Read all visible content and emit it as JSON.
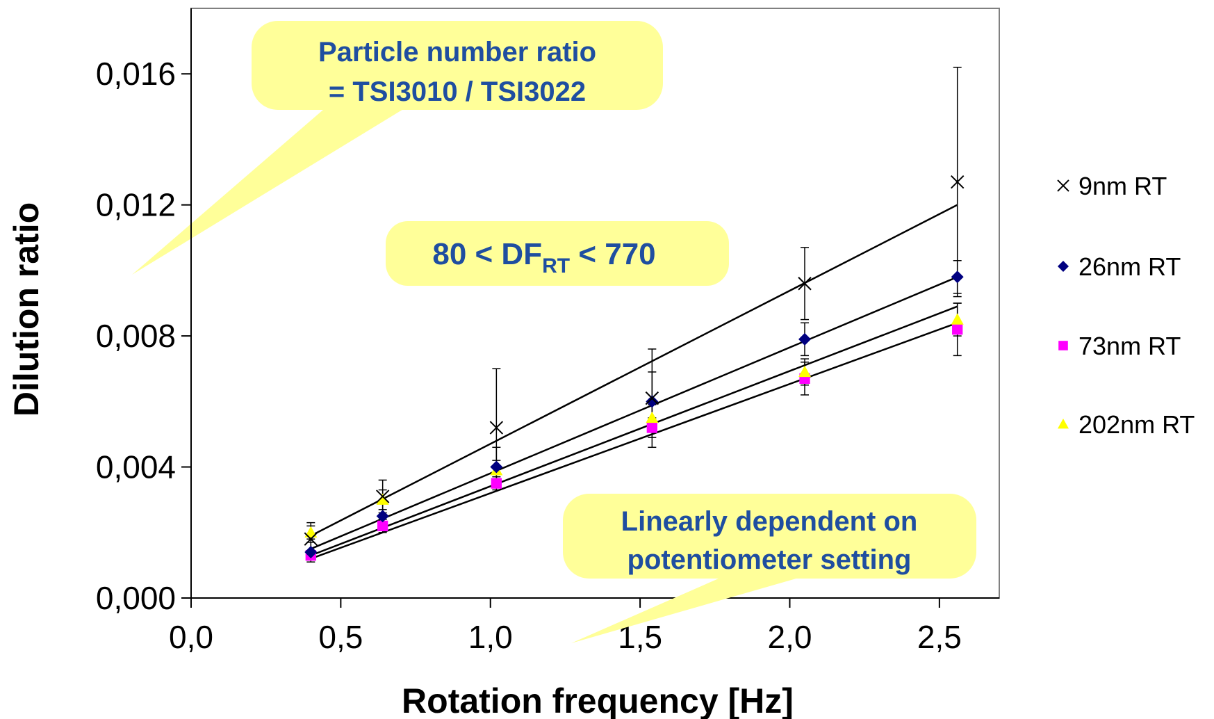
{
  "chart_data": {
    "type": "scatter",
    "xlabel": "Rotation frequency [Hz]",
    "ylabel": "Dilution ratio",
    "xlim": [
      0.0,
      2.7
    ],
    "ylim": [
      0.0,
      0.018
    ],
    "x_ticks": [
      "0,0",
      "0,5",
      "1,0",
      "1,5",
      "2,0",
      "2,5"
    ],
    "x_tick_values": [
      0.0,
      0.5,
      1.0,
      1.5,
      2.0,
      2.5
    ],
    "y_ticks": [
      "0,000",
      "0,004",
      "0,008",
      "0,012",
      "0,016"
    ],
    "y_tick_values": [
      0.0,
      0.004,
      0.008,
      0.012,
      0.016
    ],
    "grid": false,
    "legend_position": "right",
    "x": [
      0.4,
      0.64,
      1.02,
      1.54,
      2.05,
      2.56
    ],
    "series": [
      {
        "name": "9nm RT",
        "marker": "cross",
        "color": "#000000",
        "values": [
          0.0018,
          0.0031,
          0.0052,
          0.0061,
          0.0096,
          0.0127
        ],
        "err": [
          0.0005,
          0.0005,
          0.0018,
          0.0015,
          0.0011,
          0.0035
        ],
        "fit": [
          0.0019,
          0.012
        ]
      },
      {
        "name": "26nm RT",
        "marker": "diamond",
        "color": "#000080",
        "values": [
          0.0014,
          0.0025,
          0.004,
          0.006,
          0.0079,
          0.0098
        ],
        "err": [
          0.0003,
          0.0004,
          0.0006,
          0.0009,
          0.0005,
          0.0005
        ],
        "fit": [
          0.0015,
          0.0098
        ]
      },
      {
        "name": "73nm RT",
        "marker": "square",
        "color": "#ff00ff",
        "values": [
          0.0013,
          0.0022,
          0.0035,
          0.0052,
          0.0067,
          0.0082
        ],
        "err": [
          0.0001,
          0.0002,
          0.0002,
          0.0003,
          0.0005,
          0.0008
        ],
        "fit": [
          0.0012,
          0.0084
        ]
      },
      {
        "name": "202nm RT",
        "marker": "triangle",
        "color": "#ffff00",
        "values": [
          0.002,
          0.003,
          0.0039,
          0.0055,
          0.0069,
          0.0085
        ],
        "err": [
          0.0002,
          0.0003,
          0.0003,
          0.0004,
          0.0004,
          0.0005
        ],
        "fit": [
          0.0013,
          0.0089
        ]
      }
    ],
    "annotations": [
      {
        "id": "ratio",
        "lines": [
          "Particle number ratio",
          "= TSI3010 / TSI3022"
        ]
      },
      {
        "id": "df",
        "main": "80 < DF",
        "sub": "RT",
        "tail": " < 770"
      },
      {
        "id": "linear",
        "lines": [
          "Linearly dependent on",
          "potentiometer setting"
        ]
      }
    ],
    "callout_color": "#ffff99",
    "text_color": "#1f4ea0"
  }
}
